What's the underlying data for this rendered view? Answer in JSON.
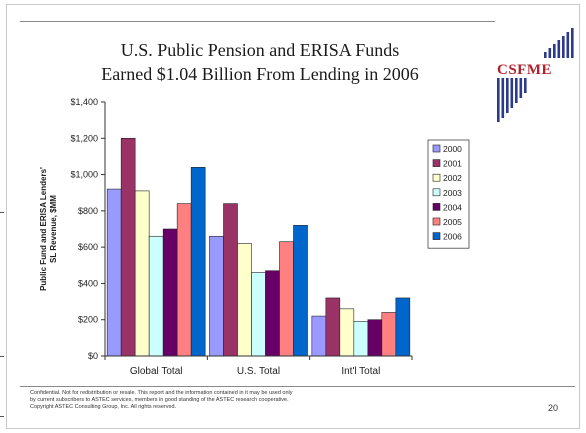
{
  "slide": {
    "title_line1": "U.S. Public Pension and ERISA Funds",
    "title_line2": "Earned $1.04 Billion From Lending in 2006",
    "logo_text": "CSFME",
    "footer_lines": [
      "Confidential. Not for redistribution or resale. This report and the information contained in it may be used only",
      "by current subscribers to ASTEC services, members in good standing of the ASTEC research cooperative.",
      "Copyright ASTEC Consulting Group, Inc. All rights reserved."
    ],
    "page_number": "20"
  },
  "colors": {
    "logo_red": "#b0202b",
    "logo_blue": "#2c3a8c"
  },
  "chart_data": {
    "type": "bar",
    "title": "",
    "xlabel": "",
    "ylabel": "Public Fund and ERISA Lenders' SL Revenue, $MM",
    "ylabel_lines": [
      "Public Fund and ERISA Lenders'",
      "SL Revenue, $MM"
    ],
    "ylim": [
      0,
      1400
    ],
    "yticks": [
      0,
      200,
      400,
      600,
      800,
      1000,
      1200,
      1400
    ],
    "ytick_labels": [
      "$0",
      "$200",
      "$400",
      "$600",
      "$800",
      "$1,000",
      "$1,200",
      "$1,400"
    ],
    "grid": false,
    "legend_position": "right",
    "categories": [
      "Global Total",
      "U.S. Total",
      "Int'l Total"
    ],
    "series": [
      {
        "name": "2000",
        "color": "#9999ff",
        "values": [
          920,
          660,
          220
        ]
      },
      {
        "name": "2001",
        "color": "#993366",
        "values": [
          1200,
          840,
          320
        ]
      },
      {
        "name": "2002",
        "color": "#ffffcc",
        "values": [
          910,
          620,
          260
        ]
      },
      {
        "name": "2003",
        "color": "#ccffff",
        "values": [
          660,
          460,
          190
        ]
      },
      {
        "name": "2004",
        "color": "#660066",
        "values": [
          700,
          470,
          200
        ]
      },
      {
        "name": "2005",
        "color": "#ff8080",
        "values": [
          840,
          630,
          240
        ]
      },
      {
        "name": "2006",
        "color": "#0066cc",
        "values": [
          1040,
          720,
          320
        ]
      }
    ]
  }
}
